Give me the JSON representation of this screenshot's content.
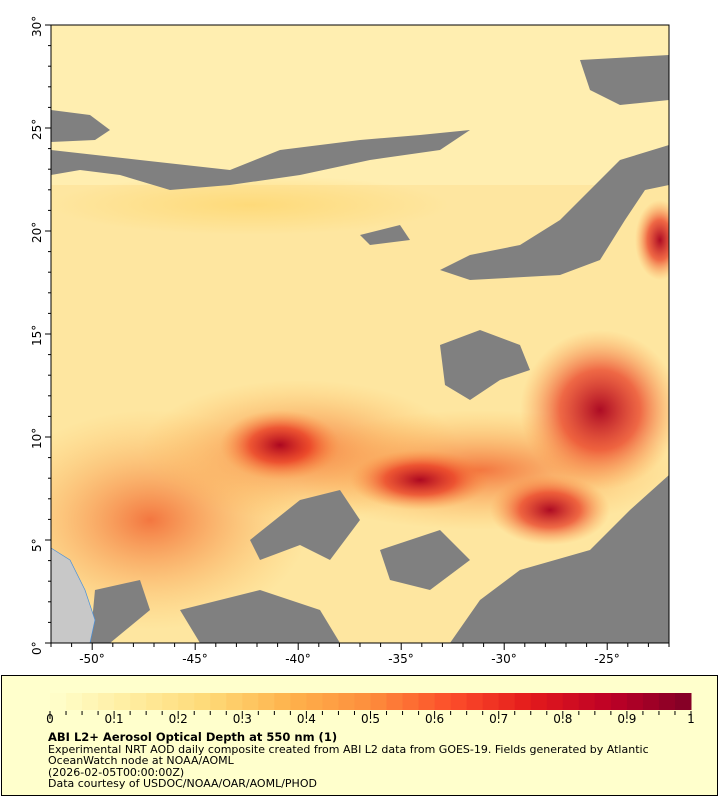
{
  "map": {
    "lat_labels": [
      "0°",
      "5°",
      "10°",
      "15°",
      "20°",
      "25°",
      "30°"
    ],
    "lon_labels": [
      "-50°",
      "-45°",
      "-40°",
      "-35°",
      "-30°",
      "-25°"
    ],
    "lat_range": [
      0,
      30
    ],
    "lon_range": [
      -52,
      -22
    ],
    "colors": {
      "no_data": "#808080",
      "land": "#c8c8c8",
      "low": "#ffffcc",
      "high": "#800026"
    }
  },
  "legend": {
    "colorbar": {
      "ticks": [
        "0",
        "0.1",
        "0.2",
        "0.3",
        "0.4",
        "0.5",
        "0.6",
        "0.7",
        "0.8",
        "0.9",
        "1"
      ],
      "range": [
        0,
        1
      ],
      "colormap": [
        "#ffffcc",
        "#ffeda0",
        "#fed976",
        "#feb24c",
        "#fd8d3c",
        "#fc4e2a",
        "#e31a1c",
        "#bd0026",
        "#800026"
      ]
    },
    "title": "ABI L2+ Aerosol Optical Depth at 550 nm (1)",
    "description": "Experimental NRT AOD daily composite created from ABI L2 data from GOES-19. Fields generated by Atlantic OceanWatch node at NOAA/AOML",
    "time": "(2026-02-05T00:00:00Z)",
    "credit": "Data courtesy of USDOC/NOAA/OAR/AOML/PHOD"
  }
}
